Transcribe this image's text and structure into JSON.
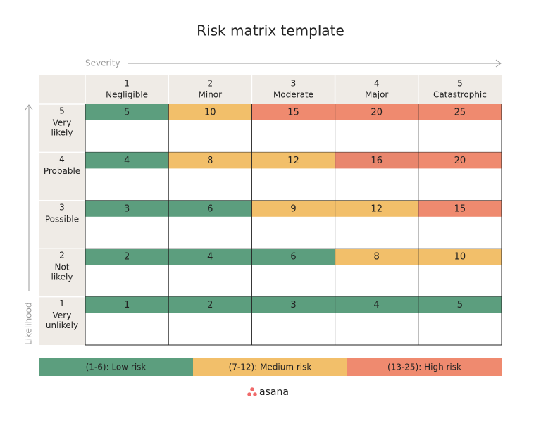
{
  "title": "Risk matrix template",
  "severity_label": "Severity",
  "likelihood_label": "Likelihood",
  "columns": [
    {
      "number": "1",
      "label": "Negligible"
    },
    {
      "number": "2",
      "label": "Minor"
    },
    {
      "number": "3",
      "label": "Moderate"
    },
    {
      "number": "4",
      "label": "Major"
    },
    {
      "number": "5",
      "label": "Catastrophic"
    }
  ],
  "rows": [
    {
      "number": "5",
      "label": [
        "Very",
        "likely"
      ],
      "cells": [
        {
          "value": 5,
          "color": "#5c9e7e"
        },
        {
          "value": 10,
          "color": "#f2bf6a"
        },
        {
          "value": 15,
          "color": "#ef8a6f"
        },
        {
          "value": 20,
          "color": "#ef8a6f"
        },
        {
          "value": 25,
          "color": "#ef8a6f"
        }
      ]
    },
    {
      "number": "4",
      "label": [
        "Probable"
      ],
      "cells": [
        {
          "value": 4,
          "color": "#5c9e7e"
        },
        {
          "value": 8,
          "color": "#f2bf6a"
        },
        {
          "value": 12,
          "color": "#f2bf6a"
        },
        {
          "value": 16,
          "color": "#e9866d"
        },
        {
          "value": 20,
          "color": "#ef8a6f"
        }
      ]
    },
    {
      "number": "3",
      "label": [
        "Possible"
      ],
      "cells": [
        {
          "value": 3,
          "color": "#5c9e7e"
        },
        {
          "value": 6,
          "color": "#5c9e7e"
        },
        {
          "value": 9,
          "color": "#f2bf6a"
        },
        {
          "value": 12,
          "color": "#f2bf6a"
        },
        {
          "value": 15,
          "color": "#ef8a6f"
        }
      ]
    },
    {
      "number": "2",
      "label": [
        "Not",
        "likely"
      ],
      "cells": [
        {
          "value": 2,
          "color": "#5c9e7e"
        },
        {
          "value": 4,
          "color": "#5c9e7e"
        },
        {
          "value": 6,
          "color": "#5c9e7e"
        },
        {
          "value": 8,
          "color": "#f2bf6a"
        },
        {
          "value": 10,
          "color": "#f2bf6a"
        }
      ]
    },
    {
      "number": "1",
      "label": [
        "Very",
        "unlikely"
      ],
      "cells": [
        {
          "value": 1,
          "color": "#5c9e7e"
        },
        {
          "value": 2,
          "color": "#5c9e7e"
        },
        {
          "value": 3,
          "color": "#5c9e7e"
        },
        {
          "value": 4,
          "color": "#5c9e7e"
        },
        {
          "value": 5,
          "color": "#5c9e7e"
        }
      ]
    }
  ],
  "legend": [
    {
      "label": "(1-6): Low risk",
      "color": "#5c9e7e"
    },
    {
      "label": "(7-12): Medium risk",
      "color": "#f2bf6a"
    },
    {
      "label": "(13-25): High risk",
      "color": "#ef8a6f"
    }
  ],
  "logo": "asana"
}
